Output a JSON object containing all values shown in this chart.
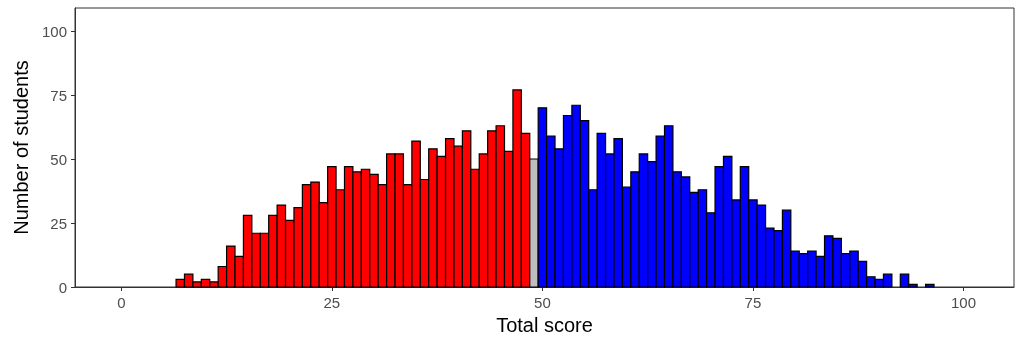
{
  "chart_data": {
    "type": "histogram",
    "xlabel": "Total score",
    "ylabel": "Number of students",
    "bins": [
      6.5,
      7.5,
      8.5,
      9.5,
      10.5,
      11.5,
      12.5,
      13.5,
      14.5,
      15.5,
      16.5,
      17.5,
      18.5,
      19.5,
      20.5,
      21.5,
      22.5,
      23.5,
      24.5,
      25.5,
      26.5,
      27.5,
      28.5,
      29.5,
      30.5,
      31.5,
      32.5,
      33.5,
      34.5,
      35.5,
      36.5,
      37.5,
      38.5,
      39.5,
      40.5,
      41.5,
      42.5,
      43.5,
      44.5,
      45.5,
      46.5,
      47.5,
      48.5,
      49.5,
      50.5,
      51.5,
      52.5,
      53.5,
      54.5,
      55.5,
      56.5,
      57.5,
      58.5,
      59.5,
      60.5,
      61.5,
      62.5,
      63.5,
      64.5,
      65.5,
      66.5,
      67.5,
      68.5,
      69.5,
      70.5,
      71.5,
      72.5,
      73.5,
      74.5,
      75.5,
      76.5,
      77.5,
      78.5,
      79.5,
      80.5,
      81.5,
      82.5,
      83.5,
      84.5,
      85.5,
      86.5,
      87.5,
      88.5,
      89.5,
      90.5,
      91.5,
      92.5,
      93.5,
      94.5,
      95.5,
      96.5
    ],
    "values": [
      3,
      5,
      2,
      3,
      2,
      8,
      16,
      12,
      28,
      21,
      21,
      28,
      32,
      26,
      31,
      40,
      41,
      33,
      47,
      38,
      47,
      45,
      46,
      44,
      40,
      52,
      52,
      40,
      57,
      42,
      54,
      51,
      58,
      55,
      61,
      46,
      52,
      61,
      63,
      53,
      77,
      60,
      50,
      70,
      59,
      54,
      67,
      71,
      65,
      38,
      60,
      52,
      58,
      39,
      45,
      52,
      49,
      59,
      63,
      45,
      43,
      37,
      38,
      29,
      47,
      51,
      34,
      47,
      34,
      32,
      23,
      22,
      30,
      14,
      13,
      14,
      12,
      20,
      19,
      13,
      14,
      10,
      4,
      3,
      5,
      0,
      5,
      1,
      0,
      1
    ],
    "colors": [
      "#ff0000",
      "#ff0000",
      "#ff0000",
      "#ff0000",
      "#ff0000",
      "#ff0000",
      "#ff0000",
      "#ff0000",
      "#ff0000",
      "#ff0000",
      "#ff0000",
      "#ff0000",
      "#ff0000",
      "#ff0000",
      "#ff0000",
      "#ff0000",
      "#ff0000",
      "#ff0000",
      "#ff0000",
      "#ff0000",
      "#ff0000",
      "#ff0000",
      "#ff0000",
      "#ff0000",
      "#ff0000",
      "#ff0000",
      "#ff0000",
      "#ff0000",
      "#ff0000",
      "#ff0000",
      "#ff0000",
      "#ff0000",
      "#ff0000",
      "#ff0000",
      "#ff0000",
      "#ff0000",
      "#ff0000",
      "#ff0000",
      "#ff0000",
      "#ff0000",
      "#ff0000",
      "#ff0000",
      "#bebebe",
      "#0000ff",
      "#0000ff",
      "#0000ff",
      "#0000ff",
      "#0000ff",
      "#0000ff",
      "#0000ff",
      "#0000ff",
      "#0000ff",
      "#0000ff",
      "#0000ff",
      "#0000ff",
      "#0000ff",
      "#0000ff",
      "#0000ff",
      "#0000ff",
      "#0000ff",
      "#0000ff",
      "#0000ff",
      "#0000ff",
      "#0000ff",
      "#0000ff",
      "#0000ff",
      "#0000ff",
      "#0000ff",
      "#0000ff",
      "#0000ff",
      "#0000ff",
      "#0000ff",
      "#0000ff",
      "#0000ff",
      "#0000ff",
      "#0000ff",
      "#0000ff",
      "#0000ff",
      "#0000ff",
      "#0000ff",
      "#0000ff",
      "#0000ff",
      "#0000ff",
      "#0000ff",
      "#0000ff",
      "#0000ff",
      "#0000ff",
      "#0000ff",
      "#0000ff",
      "#0000ff"
    ],
    "xlim": [
      -5.5,
      106
    ],
    "xticks": [
      0,
      25,
      50,
      75,
      100
    ],
    "ylim": [
      0,
      109
    ],
    "yticks": [
      0,
      25,
      50,
      75,
      100
    ],
    "grid": false
  }
}
